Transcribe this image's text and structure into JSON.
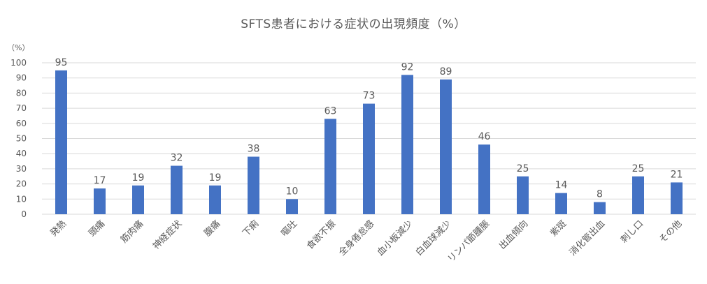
{
  "chart_data": {
    "type": "bar",
    "title": "SFTS患者における症状の出現頻度（%）",
    "unit_label": "（%）",
    "categories": [
      "発熱",
      "頭痛",
      "筋肉痛",
      "神経症状",
      "腹痛",
      "下痢",
      "嘔吐",
      "食欲不振",
      "全身倦怠感",
      "血小板減少",
      "白血球減少",
      "リンパ節腫脹",
      "出血傾向",
      "紫斑",
      "消化管出血",
      "刺し口",
      "その他"
    ],
    "values": [
      95,
      17,
      19,
      32,
      19,
      38,
      10,
      63,
      73,
      92,
      89,
      46,
      25,
      14,
      8,
      25,
      21
    ],
    "ylim": [
      0,
      100
    ],
    "yticks": [
      0,
      10,
      20,
      30,
      40,
      50,
      60,
      70,
      80,
      90,
      100
    ],
    "grid": true,
    "legend": "none",
    "bar_color": "#4472C4",
    "grid_color": "#D9D9D9",
    "text_color": "#595959"
  }
}
